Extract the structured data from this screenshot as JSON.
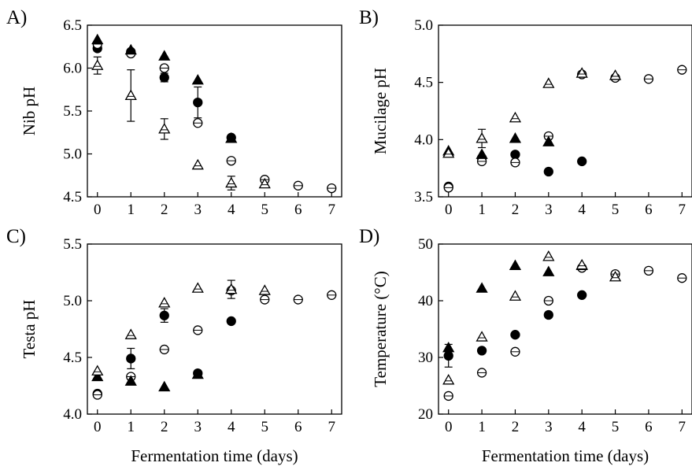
{
  "chart_data": [
    {
      "panel": "A)",
      "type": "scatter",
      "xlabel": "",
      "ylabel": "Nib pH",
      "xlim": [
        -0.3,
        7.3
      ],
      "ylim": [
        4.5,
        6.5
      ],
      "xticks": [
        0,
        1,
        2,
        3,
        4,
        5,
        6,
        7
      ],
      "yticks": [
        4.5,
        5.0,
        5.5,
        6.0,
        6.5
      ],
      "ytick_labels": [
        "4.5",
        "5.0",
        "5.5",
        "6.0",
        "6.5"
      ],
      "series": [
        {
          "marker": "filled-circle",
          "points": [
            {
              "x": 0,
              "y": 6.23,
              "err": 0.03
            },
            {
              "x": 1,
              "y": 6.19
            },
            {
              "x": 2,
              "y": 5.89,
              "err": 0.05
            },
            {
              "x": 3,
              "y": 5.6,
              "err": 0.18
            },
            {
              "x": 4,
              "y": 5.19
            }
          ]
        },
        {
          "marker": "open-circle",
          "points": [
            {
              "x": 0,
              "y": 6.28
            },
            {
              "x": 1,
              "y": 6.17
            },
            {
              "x": 2,
              "y": 6.0
            },
            {
              "x": 3,
              "y": 5.36
            },
            {
              "x": 4,
              "y": 4.92
            },
            {
              "x": 5,
              "y": 4.7
            },
            {
              "x": 6,
              "y": 4.63
            },
            {
              "x": 7,
              "y": 4.6
            }
          ]
        },
        {
          "marker": "filled-triangle",
          "points": [
            {
              "x": 0,
              "y": 6.33
            },
            {
              "x": 1,
              "y": 6.21
            },
            {
              "x": 2,
              "y": 6.14
            },
            {
              "x": 3,
              "y": 5.86
            },
            {
              "x": 4,
              "y": 5.18
            }
          ]
        },
        {
          "marker": "open-triangle",
          "points": [
            {
              "x": 0,
              "y": 6.03,
              "err": 0.1
            },
            {
              "x": 1,
              "y": 5.68,
              "err": 0.3
            },
            {
              "x": 2,
              "y": 5.29,
              "err": 0.12
            },
            {
              "x": 3,
              "y": 4.87
            },
            {
              "x": 4,
              "y": 4.66,
              "err": 0.08
            },
            {
              "x": 5,
              "y": 4.65
            }
          ]
        }
      ]
    },
    {
      "panel": "B)",
      "type": "scatter",
      "xlabel": "",
      "ylabel": "Mucilage pH",
      "xlim": [
        -0.3,
        7.3
      ],
      "ylim": [
        3.5,
        5.0
      ],
      "xticks": [
        0,
        1,
        2,
        3,
        4,
        5,
        6,
        7
      ],
      "yticks": [
        3.5,
        4.0,
        4.5,
        5.0
      ],
      "ytick_labels": [
        "3.5",
        "4.0",
        "4.5",
        "5.0"
      ],
      "series": [
        {
          "marker": "filled-circle",
          "points": [
            {
              "x": 0,
              "y": 3.59
            },
            {
              "x": 1,
              "y": 3.84
            },
            {
              "x": 2,
              "y": 3.87
            },
            {
              "x": 3,
              "y": 3.72
            },
            {
              "x": 4,
              "y": 3.81
            }
          ]
        },
        {
          "marker": "open-circle",
          "points": [
            {
              "x": 0,
              "y": 3.58
            },
            {
              "x": 1,
              "y": 3.81
            },
            {
              "x": 2,
              "y": 3.8
            },
            {
              "x": 3,
              "y": 4.03
            },
            {
              "x": 4,
              "y": 4.57
            },
            {
              "x": 5,
              "y": 4.54
            },
            {
              "x": 6,
              "y": 4.53
            },
            {
              "x": 7,
              "y": 4.61
            }
          ]
        },
        {
          "marker": "filled-triangle",
          "points": [
            {
              "x": 0,
              "y": 3.9
            },
            {
              "x": 1,
              "y": 3.87
            },
            {
              "x": 2,
              "y": 4.01
            },
            {
              "x": 3,
              "y": 3.98
            }
          ]
        },
        {
          "marker": "open-triangle",
          "points": [
            {
              "x": 0,
              "y": 3.88
            },
            {
              "x": 1,
              "y": 4.01,
              "err": 0.08
            },
            {
              "x": 2,
              "y": 4.19
            },
            {
              "x": 3,
              "y": 4.49
            },
            {
              "x": 4,
              "y": 4.58
            },
            {
              "x": 5,
              "y": 4.56
            }
          ]
        }
      ]
    },
    {
      "panel": "C)",
      "type": "scatter",
      "xlabel": "Fermentation time (days)",
      "ylabel": "Testa pH",
      "xlim": [
        -0.3,
        7.3
      ],
      "ylim": [
        4.0,
        5.5
      ],
      "xticks": [
        0,
        1,
        2,
        3,
        4,
        5,
        6,
        7
      ],
      "yticks": [
        4.0,
        4.5,
        5.0,
        5.5
      ],
      "ytick_labels": [
        "4.0",
        "4.5",
        "5.0",
        "5.5"
      ],
      "series": [
        {
          "marker": "filled-circle",
          "points": [
            {
              "x": 0,
              "y": 4.18
            },
            {
              "x": 1,
              "y": 4.49,
              "err": 0.09
            },
            {
              "x": 2,
              "y": 4.87,
              "err": 0.06
            },
            {
              "x": 3,
              "y": 4.36
            },
            {
              "x": 4,
              "y": 4.82
            }
          ]
        },
        {
          "marker": "open-circle",
          "points": [
            {
              "x": 0,
              "y": 4.17
            },
            {
              "x": 1,
              "y": 4.33
            },
            {
              "x": 2,
              "y": 4.57
            },
            {
              "x": 3,
              "y": 4.74
            },
            {
              "x": 4,
              "y": 5.09
            },
            {
              "x": 5,
              "y": 5.01
            },
            {
              "x": 6,
              "y": 5.01
            },
            {
              "x": 7,
              "y": 5.05
            }
          ]
        },
        {
          "marker": "filled-triangle",
          "points": [
            {
              "x": 0,
              "y": 4.33
            },
            {
              "x": 1,
              "y": 4.29
            },
            {
              "x": 2,
              "y": 4.24
            },
            {
              "x": 3,
              "y": 4.35
            }
          ]
        },
        {
          "marker": "open-triangle",
          "points": [
            {
              "x": 0,
              "y": 4.38
            },
            {
              "x": 1,
              "y": 4.7
            },
            {
              "x": 2,
              "y": 4.98
            },
            {
              "x": 3,
              "y": 5.11
            },
            {
              "x": 4,
              "y": 5.1,
              "err": 0.08
            },
            {
              "x": 5,
              "y": 5.09
            }
          ]
        }
      ]
    },
    {
      "panel": "D)",
      "type": "scatter",
      "xlabel": "Fermentation time (days)",
      "ylabel": "Temperature (°C)",
      "xlim": [
        -0.3,
        7.3
      ],
      "ylim": [
        20,
        50
      ],
      "xticks": [
        0,
        1,
        2,
        3,
        4,
        5,
        6,
        7
      ],
      "yticks": [
        20,
        30,
        40,
        50
      ],
      "ytick_labels": [
        "20",
        "30",
        "40",
        "50"
      ],
      "series": [
        {
          "marker": "filled-circle",
          "points": [
            {
              "x": 0,
              "y": 30.3,
              "err": 2.0
            },
            {
              "x": 1,
              "y": 31.2
            },
            {
              "x": 2,
              "y": 34.0
            },
            {
              "x": 3,
              "y": 37.5
            },
            {
              "x": 4,
              "y": 41.0
            }
          ]
        },
        {
          "marker": "open-circle",
          "points": [
            {
              "x": 0,
              "y": 23.2
            },
            {
              "x": 1,
              "y": 27.3
            },
            {
              "x": 2,
              "y": 31.0
            },
            {
              "x": 3,
              "y": 40.0
            },
            {
              "x": 4,
              "y": 45.8
            },
            {
              "x": 5,
              "y": 44.7
            },
            {
              "x": 6,
              "y": 45.3
            },
            {
              "x": 7,
              "y": 44.0
            }
          ]
        },
        {
          "marker": "filled-triangle",
          "points": [
            {
              "x": 0,
              "y": 31.7
            },
            {
              "x": 1,
              "y": 42.2
            },
            {
              "x": 2,
              "y": 46.2
            },
            {
              "x": 3,
              "y": 45.1
            },
            {
              "x": 4,
              "y": 46.2
            }
          ]
        },
        {
          "marker": "open-triangle",
          "points": [
            {
              "x": 0,
              "y": 26.0
            },
            {
              "x": 1,
              "y": 33.6
            },
            {
              "x": 2,
              "y": 40.8
            },
            {
              "x": 3,
              "y": 47.8
            },
            {
              "x": 4,
              "y": 46.3
            },
            {
              "x": 5,
              "y": 44.2
            }
          ]
        }
      ]
    }
  ]
}
